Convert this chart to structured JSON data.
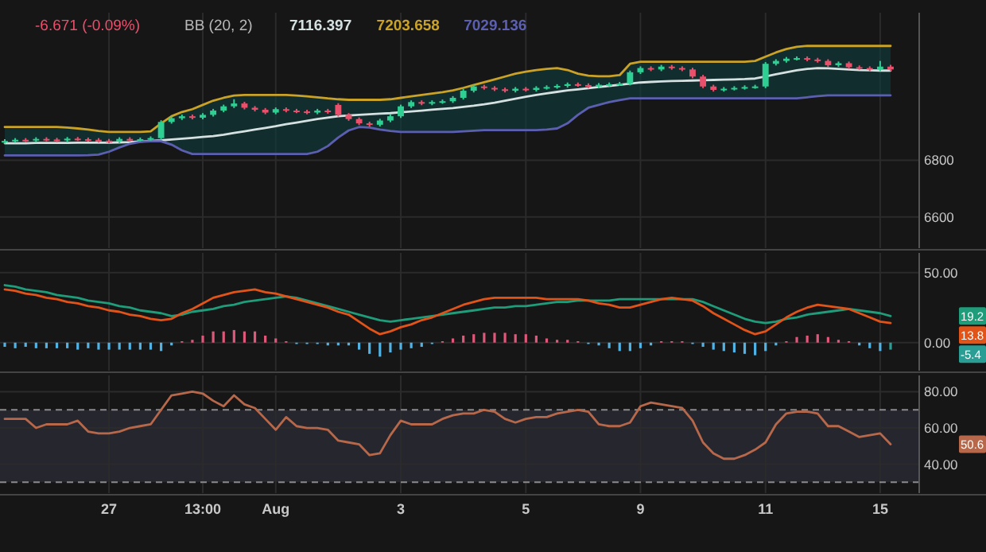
{
  "chart_data": [
    {
      "type": "candlestick",
      "categories": [
        null,
        null,
        null,
        null,
        null,
        null,
        null,
        null,
        null,
        null,
        null,
        null,
        null,
        null,
        null,
        null,
        null,
        null,
        null,
        null,
        null,
        null,
        null,
        null,
        null,
        null,
        null,
        null,
        null,
        null,
        null,
        null,
        null,
        null,
        null,
        null,
        null,
        null,
        null,
        null,
        null,
        null,
        null,
        null,
        null,
        null,
        null,
        null,
        null,
        null,
        null,
        null,
        null,
        null,
        null,
        null,
        null,
        null,
        null,
        null,
        null,
        null,
        null,
        null,
        null,
        null,
        null,
        null,
        null,
        null,
        null,
        null,
        null,
        null,
        null,
        null,
        null,
        null,
        null,
        null,
        null,
        null,
        null,
        null,
        null,
        null
      ],
      "ohlc": [
        [
          6865,
          6874,
          6859,
          6868
        ],
        [
          6868,
          6878,
          6862,
          6872
        ],
        [
          6872,
          6878,
          6864,
          6870
        ],
        [
          6870,
          6881,
          6864,
          6875
        ],
        [
          6875,
          6881,
          6867,
          6873
        ],
        [
          6873,
          6879,
          6864,
          6870
        ],
        [
          6870,
          6882,
          6864,
          6876
        ],
        [
          6876,
          6882,
          6868,
          6874
        ],
        [
          6874,
          6880,
          6866,
          6872
        ],
        [
          6872,
          6878,
          6863,
          6869
        ],
        [
          6869,
          6875,
          6860,
          6866
        ],
        [
          6866,
          6881,
          6860,
          6875
        ],
        [
          6875,
          6881,
          6866,
          6872
        ],
        [
          6872,
          6880,
          6866,
          6874
        ],
        [
          6874,
          6884,
          6868,
          6878
        ],
        [
          6878,
          6941,
          6872,
          6935
        ],
        [
          6935,
          6954,
          6929,
          6948
        ],
        [
          6948,
          6961,
          6942,
          6955
        ],
        [
          6955,
          6961,
          6944,
          6950
        ],
        [
          6950,
          6966,
          6944,
          6960
        ],
        [
          6960,
          6981,
          6954,
          6975
        ],
        [
          6975,
          6996,
          6969,
          6990
        ],
        [
          6990,
          7015,
          6984,
          7000
        ],
        [
          7000,
          7006,
          6979,
          6985
        ],
        [
          6985,
          6991,
          6972,
          6978
        ],
        [
          6978,
          6984,
          6962,
          6968
        ],
        [
          6968,
          6986,
          6962,
          6980
        ],
        [
          6980,
          6986,
          6969,
          6975
        ],
        [
          6975,
          6981,
          6966,
          6972
        ],
        [
          6972,
          6978,
          6962,
          6968
        ],
        [
          6968,
          6981,
          6962,
          6975
        ],
        [
          6975,
          6981,
          6964,
          6970
        ],
        [
          6995,
          7001,
          6954,
          6960
        ],
        [
          6960,
          6966,
          6939,
          6945
        ],
        [
          6945,
          6951,
          6924,
          6930
        ],
        [
          6930,
          6936,
          6919,
          6925
        ],
        [
          6925,
          6946,
          6919,
          6940
        ],
        [
          6940,
          6961,
          6934,
          6955
        ],
        [
          6955,
          6996,
          6949,
          6990
        ],
        [
          6990,
          7011,
          6984,
          7005
        ],
        [
          7005,
          7011,
          6994,
          7000
        ],
        [
          7000,
          7011,
          6994,
          7005
        ],
        [
          7005,
          7014,
          6999,
          7008
        ],
        [
          7008,
          7026,
          7002,
          7020
        ],
        [
          7020,
          7051,
          7014,
          7045
        ],
        [
          7045,
          7066,
          7039,
          7060
        ],
        [
          7060,
          7066,
          7049,
          7055
        ],
        [
          7055,
          7061,
          7044,
          7050
        ],
        [
          7050,
          7056,
          7039,
          7045
        ],
        [
          7045,
          7058,
          7039,
          7052
        ],
        [
          7052,
          7058,
          7042,
          7048
        ],
        [
          7048,
          7061,
          7042,
          7055
        ],
        [
          7055,
          7064,
          7049,
          7058
        ],
        [
          7058,
          7068,
          7052,
          7062
        ],
        [
          7062,
          7074,
          7056,
          7068
        ],
        [
          7068,
          7074,
          7059,
          7065
        ],
        [
          7065,
          7071,
          7054,
          7060
        ],
        [
          7060,
          7072,
          7054,
          7066
        ],
        [
          7066,
          7074,
          7060,
          7068
        ],
        [
          7068,
          7076,
          7062,
          7070
        ],
        [
          7070,
          7116,
          7064,
          7110
        ],
        [
          7110,
          7131,
          7104,
          7125
        ],
        [
          7125,
          7131,
          7114,
          7120
        ],
        [
          7120,
          7136,
          7114,
          7130
        ],
        [
          7130,
          7136,
          7119,
          7125
        ],
        [
          7125,
          7131,
          7114,
          7120
        ],
        [
          7120,
          7126,
          7089,
          7095
        ],
        [
          7095,
          7101,
          7054,
          7060
        ],
        [
          7060,
          7066,
          7042,
          7048
        ],
        [
          7048,
          7058,
          7042,
          7052
        ],
        [
          7052,
          7061,
          7046,
          7055
        ],
        [
          7055,
          7064,
          7049,
          7058
        ],
        [
          7058,
          7066,
          7052,
          7060
        ],
        [
          7060,
          7146,
          7054,
          7140
        ],
        [
          7140,
          7156,
          7134,
          7150
        ],
        [
          7150,
          7164,
          7144,
          7158
        ],
        [
          7158,
          7166,
          7152,
          7160
        ],
        [
          7160,
          7166,
          7149,
          7155
        ],
        [
          7155,
          7161,
          7144,
          7150
        ],
        [
          7150,
          7156,
          7129,
          7135
        ],
        [
          7135,
          7148,
          7129,
          7142
        ],
        [
          7142,
          7148,
          7122,
          7128
        ],
        [
          7128,
          7134,
          7119,
          7125
        ],
        [
          7125,
          7131,
          7114,
          7120
        ],
        [
          7120,
          7150,
          7114,
          7130
        ],
        [
          7130,
          7136,
          7114,
          7120
        ]
      ],
      "colors": [
        "#2fcf93",
        "#2fcf93",
        "#e8506b",
        "#2fcf93",
        "#e8506b",
        "#e8506b",
        "#2fcf93",
        "#e8506b",
        "#e8506b",
        "#e8506b",
        "#e8506b",
        "#2fcf93",
        "#e8506b",
        "#2fcf93",
        "#2fcf93",
        "#2fcf93",
        "#2fcf93",
        "#2fcf93",
        "#e8506b",
        "#2fcf93",
        "#2fcf93",
        "#2fcf93",
        "#2fcf93",
        "#e8506b",
        "#e8506b",
        "#e8506b",
        "#2fcf93",
        "#e8506b",
        "#e8506b",
        "#e8506b",
        "#2fcf93",
        "#e8506b",
        "#e8506b",
        "#e8506b",
        "#e8506b",
        "#e8506b",
        "#2fcf93",
        "#2fcf93",
        "#2fcf93",
        "#2fcf93",
        "#e8506b",
        "#2fcf93",
        "#2fcf93",
        "#2fcf93",
        "#2fcf93",
        "#2fcf93",
        "#e8506b",
        "#e8506b",
        "#e8506b",
        "#2fcf93",
        "#e8506b",
        "#2fcf93",
        "#2fcf93",
        "#2fcf93",
        "#2fcf93",
        "#e8506b",
        "#e8506b",
        "#2fcf93",
        "#2fcf93",
        "#2fcf93",
        "#2fcf93",
        "#2fcf93",
        "#e8506b",
        "#2fcf93",
        "#e8506b",
        "#e8506b",
        "#e8506b",
        "#e8506b",
        "#e8506b",
        "#2fcf93",
        "#2fcf93",
        "#2fcf93",
        "#2fcf93",
        "#2fcf93",
        "#2fcf93",
        "#2fcf93",
        "#2fcf93",
        "#e8506b",
        "#e8506b",
        "#e8506b",
        "#2fcf93",
        "#e8506b",
        "#e8506b",
        "#e8506b",
        "#2fcf93",
        "#e8506b"
      ],
      "series": [
        {
          "type": "line",
          "color": "#d5e0e0",
          "values": [
            6860,
            6860,
            6860,
            6861,
            6861,
            6861,
            6861,
            6862,
            6862,
            6862,
            6862,
            6863,
            6864,
            6866,
            6868,
            6870,
            6873,
            6876,
            6879,
            6882,
            6885,
            6890,
            6896,
            6902,
            6908,
            6914,
            6920,
            6927,
            6933,
            6939,
            6945,
            6950,
            6955,
            6958,
            6960,
            6962,
            6964,
            6966,
            6969,
            6972,
            6975,
            6978,
            6981,
            6984,
            6988,
            6992,
            6997,
            7003,
            7010,
            7017,
            7024,
            7030,
            7036,
            7041,
            7046,
            7050,
            7054,
            7058,
            7062,
            7066,
            7070,
            7074,
            7076,
            7078,
            7079,
            7080,
            7081,
            7082,
            7083,
            7084,
            7085,
            7086,
            7088,
            7095,
            7103,
            7110,
            7117,
            7122,
            7125,
            7124,
            7122,
            7120,
            7118,
            7117,
            7116,
            7116
          ],
          "lower": [
            6817,
            6817,
            6817,
            6817,
            6817,
            6817,
            6817,
            6817,
            6818,
            6820,
            6830,
            6845,
            6858,
            6865,
            6867,
            6867,
            6855,
            6835,
            6822,
            6822,
            6822,
            6822,
            6822,
            6822,
            6822,
            6822,
            6822,
            6822,
            6822,
            6822,
            6830,
            6850,
            6880,
            6905,
            6917,
            6915,
            6908,
            6903,
            6900,
            6900,
            6900,
            6900,
            6900,
            6900,
            6902,
            6904,
            6906,
            6906,
            6906,
            6906,
            6906,
            6906,
            6908,
            6912,
            6930,
            6960,
            6985,
            6995,
            7005,
            7012,
            7018,
            7018,
            7018,
            7018,
            7018,
            7018,
            7018,
            7018,
            7018,
            7018,
            7018,
            7018,
            7018,
            7018,
            7018,
            7018,
            7018,
            7022,
            7026,
            7029,
            7029,
            7029,
            7029,
            7029,
            7029,
            7029
          ],
          "upper": [
            6917,
            6917,
            6917,
            6917,
            6917,
            6917,
            6915,
            6912,
            6908,
            6903,
            6900,
            6900,
            6900,
            6900,
            6902,
            6930,
            6955,
            6970,
            6980,
            6995,
            7010,
            7020,
            7028,
            7030,
            7030,
            7030,
            7030,
            7030,
            7028,
            7025,
            7022,
            7018,
            7015,
            7013,
            7013,
            7013,
            7013,
            7015,
            7020,
            7025,
            7030,
            7035,
            7040,
            7046,
            7055,
            7065,
            7075,
            7085,
            7095,
            7105,
            7112,
            7118,
            7122,
            7125,
            7118,
            7105,
            7098,
            7096,
            7096,
            7100,
            7140,
            7147,
            7147,
            7147,
            7147,
            7147,
            7147,
            7147,
            7147,
            7147,
            7147,
            7147,
            7150,
            7165,
            7180,
            7192,
            7200,
            7203,
            7203,
            7203,
            7203,
            7203,
            7203,
            7203,
            7203,
            7203
          ]
        },
        {
          "type": "line",
          "color": "#c9a227",
          "values": [
            6917,
            6917,
            6917,
            6917,
            6917,
            6917,
            6915,
            6912,
            6908,
            6903,
            6900,
            6900,
            6900,
            6900,
            6902,
            6930,
            6955,
            6970,
            6980,
            6995,
            7010,
            7020,
            7028,
            7030,
            7030,
            7030,
            7030,
            7030,
            7028,
            7025,
            7022,
            7018,
            7015,
            7013,
            7013,
            7013,
            7013,
            7015,
            7020,
            7025,
            7030,
            7035,
            7040,
            7046,
            7055,
            7065,
            7075,
            7085,
            7095,
            7105,
            7112,
            7118,
            7122,
            7125,
            7118,
            7105,
            7098,
            7096,
            7096,
            7100,
            7140,
            7147,
            7147,
            7147,
            7147,
            7147,
            7147,
            7147,
            7147,
            7147,
            7147,
            7147,
            7150,
            7165,
            7180,
            7192,
            7200,
            7203,
            7203,
            7203,
            7203,
            7203,
            7203,
            7203,
            7203,
            7203
          ]
        },
        {
          "type": "line",
          "color": "#5c5fb0",
          "values": [
            6817,
            6817,
            6817,
            6817,
            6817,
            6817,
            6817,
            6817,
            6818,
            6820,
            6830,
            6845,
            6858,
            6865,
            6867,
            6867,
            6855,
            6835,
            6822,
            6822,
            6822,
            6822,
            6822,
            6822,
            6822,
            6822,
            6822,
            6822,
            6822,
            6822,
            6830,
            6850,
            6880,
            6905,
            6917,
            6915,
            6908,
            6903,
            6900,
            6900,
            6900,
            6900,
            6900,
            6900,
            6902,
            6904,
            6906,
            6906,
            6906,
            6906,
            6906,
            6906,
            6908,
            6912,
            6930,
            6960,
            6985,
            6995,
            7005,
            7012,
            7018,
            7018,
            7018,
            7018,
            7018,
            7018,
            7018,
            7018,
            7018,
            7018,
            7018,
            7018,
            7018,
            7018,
            7018,
            7018,
            7018,
            7022,
            7026,
            7029,
            7029,
            7029,
            7029,
            7029,
            7029,
            7029
          ]
        }
      ],
      "ylim": [
        6490,
        7320
      ],
      "yticks": [
        6600,
        6800
      ],
      "grid": true,
      "tick_labels": "y",
      "annotations": [
        "-6.671 (-0.09%)",
        "BB (20, 2)",
        "7116.397",
        "7203.658",
        "7029.136"
      ]
    },
    {
      "type": "line",
      "categories": [
        null,
        null,
        null,
        null,
        null,
        null,
        null,
        null,
        null,
        null,
        null,
        null,
        null,
        null,
        null,
        null,
        null,
        null,
        null,
        null,
        null,
        null,
        null,
        null,
        null,
        null,
        null,
        null,
        null,
        null,
        null,
        null,
        null,
        null,
        null,
        null,
        null,
        null,
        null,
        null,
        null,
        null,
        null,
        null,
        null,
        null,
        null,
        null,
        null,
        null,
        null,
        null,
        null,
        null,
        null,
        null,
        null,
        null,
        null,
        null,
        null,
        null,
        null,
        null,
        null,
        null,
        null,
        null,
        null,
        null,
        null,
        null,
        null,
        null,
        null,
        null,
        null,
        null,
        null,
        null,
        null,
        null,
        null,
        null,
        null,
        null
      ],
      "series": [
        {
          "color": "#1f9c7a",
          "values": [
            41,
            40,
            38,
            37,
            36,
            34,
            33,
            32,
            30,
            29,
            28,
            26,
            25,
            23,
            22,
            21,
            19,
            20,
            22,
            23,
            24,
            26,
            27,
            29,
            30,
            31,
            32,
            33,
            32,
            30,
            28,
            26,
            24,
            22,
            20,
            18,
            16,
            15,
            16,
            17,
            18,
            19,
            20,
            21,
            22,
            23,
            24,
            25,
            25,
            26,
            26,
            27,
            28,
            29,
            29,
            30,
            30,
            30,
            30,
            31,
            31,
            31,
            31,
            31,
            31,
            31,
            31,
            29,
            26,
            23,
            20,
            17,
            15,
            14,
            15,
            17,
            18,
            20,
            21,
            22,
            23,
            24,
            23,
            22,
            21,
            19
          ]
        },
        {
          "color": "#e0541a",
          "values": [
            38,
            37,
            35,
            34,
            32,
            31,
            29,
            28,
            26,
            25,
            23,
            22,
            20,
            19,
            17,
            16,
            17,
            21,
            24,
            28,
            32,
            34,
            36,
            37,
            38,
            36,
            35,
            33,
            31,
            29,
            27,
            25,
            22,
            20,
            15,
            10,
            6,
            8,
            11,
            13,
            16,
            18,
            21,
            24,
            27,
            29,
            31,
            32,
            32,
            32,
            32,
            32,
            31,
            31,
            31,
            31,
            30,
            28,
            27,
            25,
            25,
            27,
            29,
            31,
            32,
            31,
            30,
            26,
            21,
            17,
            13,
            9,
            6,
            8,
            13,
            18,
            22,
            25,
            27,
            26,
            25,
            24,
            21,
            18,
            15,
            14
          ]
        },
        {
          "type": "bar",
          "values": [
            -3,
            -4,
            -3,
            -4,
            -4,
            -4,
            -4,
            -5,
            -4,
            -5,
            -5,
            -5,
            -5,
            -5,
            -5,
            -6,
            -2,
            1,
            2,
            5,
            8,
            8,
            9,
            8,
            8,
            5,
            3,
            1,
            -1,
            -1,
            -1,
            -2,
            -2,
            -2,
            -5,
            -8,
            -10,
            -7,
            -5,
            -4,
            -3,
            -1,
            1,
            3,
            5,
            6,
            7,
            7,
            7,
            6,
            6,
            5,
            3,
            2,
            2,
            1,
            -1,
            -2,
            -4,
            -6,
            -6,
            -4,
            -2,
            1,
            1,
            1,
            -1,
            -3,
            -5,
            -6,
            -7,
            -8,
            -9,
            -6,
            -2,
            1,
            4,
            5,
            6,
            4,
            2,
            1,
            -2,
            -4,
            -6,
            -5
          ],
          "colors": [
            "#4fb3e6",
            "#4fb3e6",
            "#4fb3e6",
            "#4fb3e6",
            "#4fb3e6",
            "#4fb3e6",
            "#4fb3e6",
            "#4fb3e6",
            "#4fb3e6",
            "#4fb3e6",
            "#4fb3e6",
            "#4fb3e6",
            "#4fb3e6",
            "#4fb3e6",
            "#4fb3e6",
            "#4fb3e6",
            "#4fb3e6",
            "#e0577a",
            "#e0577a",
            "#e0577a",
            "#e0577a",
            "#e0577a",
            "#e0577a",
            "#e0577a",
            "#e0577a",
            "#e0577a",
            "#e0577a",
            "#e0577a",
            "#4fb3e6",
            "#4fb3e6",
            "#4fb3e6",
            "#4fb3e6",
            "#4fb3e6",
            "#4fb3e6",
            "#4fb3e6",
            "#4fb3e6",
            "#4fb3e6",
            "#4fb3e6",
            "#4fb3e6",
            "#4fb3e6",
            "#4fb3e6",
            "#4fb3e6",
            "#e0577a",
            "#e0577a",
            "#e0577a",
            "#e0577a",
            "#e0577a",
            "#e0577a",
            "#e0577a",
            "#e0577a",
            "#e0577a",
            "#e0577a",
            "#e0577a",
            "#e0577a",
            "#e0577a",
            "#e0577a",
            "#4fb3e6",
            "#4fb3e6",
            "#4fb3e6",
            "#4fb3e6",
            "#4fb3e6",
            "#4fb3e6",
            "#4fb3e6",
            "#e0577a",
            "#e0577a",
            "#e0577a",
            "#4fb3e6",
            "#4fb3e6",
            "#4fb3e6",
            "#4fb3e6",
            "#4fb3e6",
            "#4fb3e6",
            "#4fb3e6",
            "#4fb3e6",
            "#4fb3e6",
            "#e0577a",
            "#e0577a",
            "#e0577a",
            "#e0577a",
            "#e0577a",
            "#e0577a",
            "#e0577a",
            "#4fb3e6",
            "#4fb3e6",
            "#4fb3e6",
            "#2a9d95"
          ]
        }
      ],
      "ylim": [
        -20,
        64
      ],
      "yticks": [
        {
          "value": 50,
          "label": "50.00"
        },
        {
          "value": 0,
          "label": "0.00"
        }
      ],
      "grid": true,
      "tick_labels": "y",
      "annotations": [
        "19.2",
        "13.8",
        "-5.4"
      ]
    },
    {
      "type": "line",
      "categories": [
        null,
        null,
        null,
        null,
        null,
        null,
        null,
        null,
        null,
        null,
        "27",
        null,
        null,
        null,
        null,
        null,
        null,
        null,
        null,
        "13:00",
        null,
        null,
        null,
        null,
        null,
        null,
        "Aug",
        null,
        null,
        null,
        null,
        null,
        null,
        null,
        null,
        null,
        null,
        null,
        "3",
        null,
        null,
        null,
        null,
        null,
        null,
        null,
        null,
        null,
        null,
        null,
        "5",
        null,
        null,
        null,
        null,
        null,
        null,
        null,
        null,
        null,
        null,
        "9",
        null,
        null,
        null,
        null,
        null,
        null,
        null,
        null,
        null,
        null,
        null,
        "11",
        null,
        null,
        null,
        null,
        null,
        null,
        null,
        null,
        null,
        null,
        "15",
        null
      ],
      "series": [
        {
          "color": "#b8684a",
          "values": [
            65,
            65,
            65,
            60,
            62,
            62,
            62,
            64,
            58,
            57,
            57,
            58,
            60,
            61,
            62,
            70,
            78,
            79,
            80,
            79,
            75,
            72,
            78,
            73,
            71,
            65,
            59,
            66,
            61,
            60,
            60,
            59,
            53,
            52,
            51,
            45,
            46,
            56,
            64,
            62,
            62,
            62,
            65,
            67,
            68,
            68,
            70,
            69,
            65,
            63,
            65,
            66,
            66,
            68,
            69,
            70,
            69,
            62,
            61,
            61,
            63,
            72,
            74,
            73,
            72,
            71,
            64,
            52,
            46,
            43,
            43,
            45,
            48,
            52,
            62,
            68,
            69,
            69,
            68,
            61,
            61,
            58,
            55,
            56,
            57,
            51
          ]
        }
      ],
      "ylim": [
        24,
        89
      ],
      "yticks": [
        {
          "value": 80,
          "label": "80.00"
        },
        {
          "value": 60,
          "label": "60.00"
        },
        {
          "value": 40,
          "label": "40.00"
        }
      ],
      "grid": true,
      "bands": [
        {
          "axis": "y",
          "from": 30,
          "to": 70,
          "color": "#26262e"
        }
      ],
      "ref_lines": [
        {
          "axis": "y",
          "value": 70,
          "color": "#8a8a8a",
          "line_style": "dashed"
        },
        {
          "axis": "y",
          "value": 30,
          "color": "#8a8a8a",
          "line_style": "dashed"
        }
      ],
      "annotations": [
        "50.6"
      ]
    }
  ]
}
